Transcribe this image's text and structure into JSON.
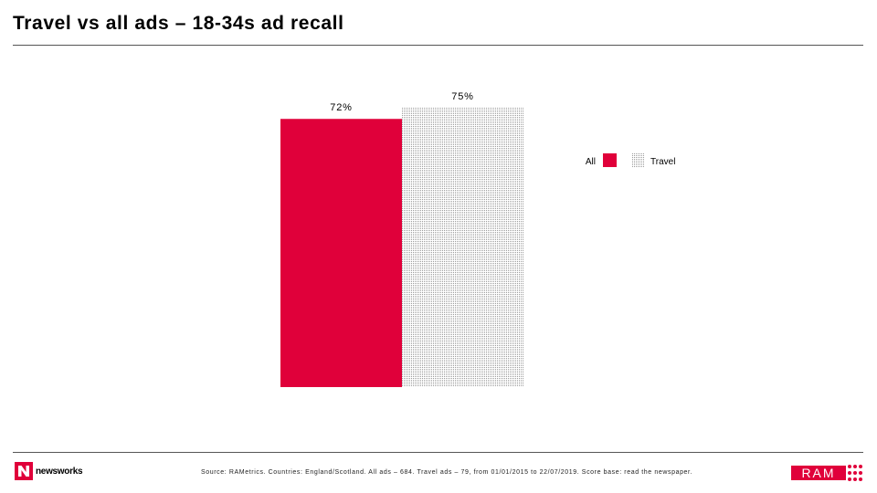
{
  "title": "Travel vs all ads – 18-34s ad recall",
  "chart_data": {
    "type": "bar",
    "categories": [
      "All",
      "Travel"
    ],
    "values": [
      72,
      75
    ],
    "data_labels": [
      "72%",
      "75%"
    ],
    "ylim": [
      0,
      100
    ],
    "grid": false,
    "legend": {
      "placement": "right",
      "entries": [
        {
          "label": "All",
          "style": "solid"
        },
        {
          "label": "Travel",
          "style": "dotted"
        }
      ]
    },
    "colors": {
      "all": "#e0003a",
      "travel_dots": "#9a9a9a"
    }
  },
  "footer": {
    "source": "Source: RAMetrics. Countries: England/Scotland. All ads – 684. Travel ads – 79, from 01/01/2015 to 22/07/2019. Score base: read the newspaper."
  },
  "logos": {
    "newsworks": "newsworks",
    "ram": "RAM"
  }
}
